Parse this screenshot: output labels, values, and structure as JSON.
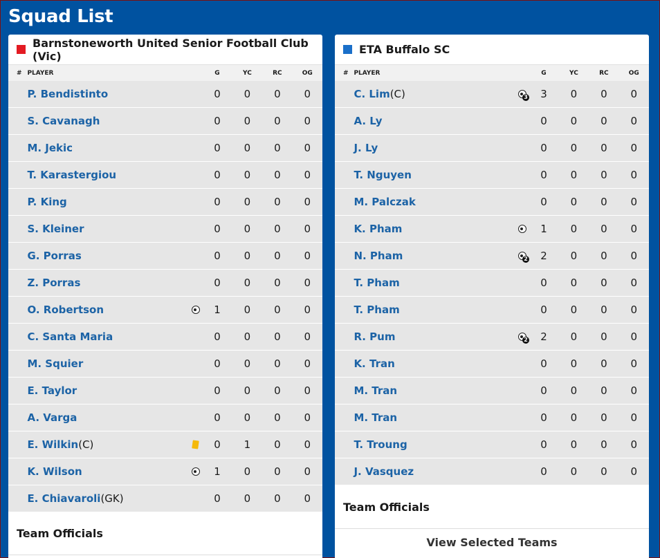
{
  "page": {
    "title": "Squad List"
  },
  "colors": {
    "background": "#0052a0",
    "home_swatch": "#e31b23",
    "away_swatch": "#1a6fc9",
    "link": "#1c63a6",
    "yellow_card": "#f5b90a"
  },
  "columns": {
    "num": "#",
    "player": "PLAYER",
    "g": "G",
    "yc": "YC",
    "rc": "RC",
    "og": "OG"
  },
  "home": {
    "name": "Barnstoneworth United Senior Football Club (Vic)",
    "officials_label": "Team Officials",
    "players": [
      {
        "name": "P. Bendistinto",
        "role": "",
        "icon": "",
        "badge": "",
        "g": "0",
        "yc": "0",
        "rc": "0",
        "og": "0"
      },
      {
        "name": "S. Cavanagh",
        "role": "",
        "icon": "",
        "badge": "",
        "g": "0",
        "yc": "0",
        "rc": "0",
        "og": "0"
      },
      {
        "name": "M. Jekic",
        "role": "",
        "icon": "",
        "badge": "",
        "g": "0",
        "yc": "0",
        "rc": "0",
        "og": "0"
      },
      {
        "name": "T. Karastergiou",
        "role": "",
        "icon": "",
        "badge": "",
        "g": "0",
        "yc": "0",
        "rc": "0",
        "og": "0"
      },
      {
        "name": "P. King",
        "role": "",
        "icon": "",
        "badge": "",
        "g": "0",
        "yc": "0",
        "rc": "0",
        "og": "0"
      },
      {
        "name": "S. Kleiner",
        "role": "",
        "icon": "",
        "badge": "",
        "g": "0",
        "yc": "0",
        "rc": "0",
        "og": "0"
      },
      {
        "name": "G. Porras",
        "role": "",
        "icon": "",
        "badge": "",
        "g": "0",
        "yc": "0",
        "rc": "0",
        "og": "0"
      },
      {
        "name": "Z. Porras",
        "role": "",
        "icon": "",
        "badge": "",
        "g": "0",
        "yc": "0",
        "rc": "0",
        "og": "0"
      },
      {
        "name": "O. Robertson",
        "role": "",
        "icon": "ball-icon",
        "badge": "",
        "g": "1",
        "yc": "0",
        "rc": "0",
        "og": "0"
      },
      {
        "name": "C. Santa Maria",
        "role": "",
        "icon": "",
        "badge": "",
        "g": "0",
        "yc": "0",
        "rc": "0",
        "og": "0"
      },
      {
        "name": "M. Squier",
        "role": "",
        "icon": "",
        "badge": "",
        "g": "0",
        "yc": "0",
        "rc": "0",
        "og": "0"
      },
      {
        "name": "E. Taylor",
        "role": "",
        "icon": "",
        "badge": "",
        "g": "0",
        "yc": "0",
        "rc": "0",
        "og": "0"
      },
      {
        "name": "A. Varga",
        "role": "",
        "icon": "",
        "badge": "",
        "g": "0",
        "yc": "0",
        "rc": "0",
        "og": "0"
      },
      {
        "name": "E. Wilkin",
        "role": "(C)",
        "icon": "yellow-card-icon",
        "badge": "",
        "g": "0",
        "yc": "1",
        "rc": "0",
        "og": "0"
      },
      {
        "name": "K. Wilson",
        "role": "",
        "icon": "ball-icon",
        "badge": "",
        "g": "1",
        "yc": "0",
        "rc": "0",
        "og": "0"
      },
      {
        "name": "E. Chiavaroli",
        "role": "(GK)",
        "icon": "",
        "badge": "",
        "g": "0",
        "yc": "0",
        "rc": "0",
        "og": "0"
      }
    ]
  },
  "away": {
    "name": "ETA Buffalo SC",
    "officials_label": "Team Officials",
    "view_button": "View Selected Teams",
    "players": [
      {
        "name": "C. Lim",
        "role": "(C)",
        "icon": "ball-icon",
        "badge": "3",
        "g": "3",
        "yc": "0",
        "rc": "0",
        "og": "0"
      },
      {
        "name": "A. Ly",
        "role": "",
        "icon": "",
        "badge": "",
        "g": "0",
        "yc": "0",
        "rc": "0",
        "og": "0"
      },
      {
        "name": "J. Ly",
        "role": "",
        "icon": "",
        "badge": "",
        "g": "0",
        "yc": "0",
        "rc": "0",
        "og": "0"
      },
      {
        "name": "T. Nguyen",
        "role": "",
        "icon": "",
        "badge": "",
        "g": "0",
        "yc": "0",
        "rc": "0",
        "og": "0"
      },
      {
        "name": "M. Palczak",
        "role": "",
        "icon": "",
        "badge": "",
        "g": "0",
        "yc": "0",
        "rc": "0",
        "og": "0"
      },
      {
        "name": "K. Pham",
        "role": "",
        "icon": "ball-icon",
        "badge": "",
        "g": "1",
        "yc": "0",
        "rc": "0",
        "og": "0"
      },
      {
        "name": "N. Pham",
        "role": "",
        "icon": "ball-icon",
        "badge": "2",
        "g": "2",
        "yc": "0",
        "rc": "0",
        "og": "0"
      },
      {
        "name": "T. Pham",
        "role": "",
        "icon": "",
        "badge": "",
        "g": "0",
        "yc": "0",
        "rc": "0",
        "og": "0"
      },
      {
        "name": "T. Pham",
        "role": "",
        "icon": "",
        "badge": "",
        "g": "0",
        "yc": "0",
        "rc": "0",
        "og": "0"
      },
      {
        "name": "R. Pum",
        "role": "",
        "icon": "ball-icon",
        "badge": "2",
        "g": "2",
        "yc": "0",
        "rc": "0",
        "og": "0"
      },
      {
        "name": "K. Tran",
        "role": "",
        "icon": "",
        "badge": "",
        "g": "0",
        "yc": "0",
        "rc": "0",
        "og": "0"
      },
      {
        "name": "M. Tran",
        "role": "",
        "icon": "",
        "badge": "",
        "g": "0",
        "yc": "0",
        "rc": "0",
        "og": "0"
      },
      {
        "name": "M. Tran",
        "role": "",
        "icon": "",
        "badge": "",
        "g": "0",
        "yc": "0",
        "rc": "0",
        "og": "0"
      },
      {
        "name": "T. Troung",
        "role": "",
        "icon": "",
        "badge": "",
        "g": "0",
        "yc": "0",
        "rc": "0",
        "og": "0"
      },
      {
        "name": "J. Vasquez",
        "role": "",
        "icon": "",
        "badge": "",
        "g": "0",
        "yc": "0",
        "rc": "0",
        "og": "0"
      }
    ]
  }
}
